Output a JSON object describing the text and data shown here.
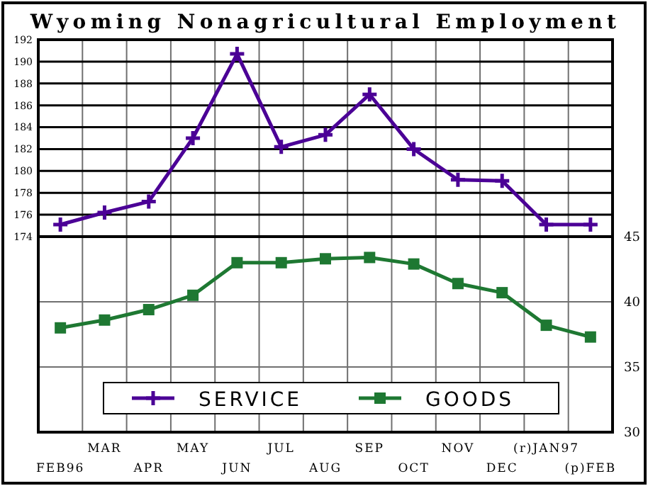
{
  "chart_data": [
    {
      "type": "line",
      "title": "Wyoming Nonagricultural Employment",
      "categories": [
        null,
        null,
        null,
        null,
        null,
        null,
        null,
        null,
        null,
        null,
        null,
        null,
        null
      ],
      "series": [
        {
          "name": "SERVICE",
          "color": "#4b0096",
          "marker": "cross",
          "values": [
            175.1,
            176.2,
            177.2,
            183,
            190.7,
            182.2,
            183.3,
            187,
            182,
            179.2,
            179.1,
            175.1,
            175.1
          ]
        }
      ],
      "ylim": [
        174,
        192
      ],
      "yticks": [
        174,
        176,
        178,
        180,
        182,
        184,
        186,
        188,
        190,
        192
      ],
      "grid": true,
      "tick_labels": "y",
      "legend": "bottom"
    },
    {
      "type": "line",
      "categories": [
        "FEB96",
        "MAR",
        "APR",
        "MAY",
        "JUN",
        "JUL",
        "AUG",
        "SEP",
        "OCT",
        "NOV",
        "DEC",
        "(r)JAN97",
        "(p)FEB"
      ],
      "series": [
        {
          "name": "GOODS",
          "color": "#1e7832",
          "marker": "square",
          "axis": "y2",
          "values": [
            38.0,
            38.6,
            39.4,
            40.5,
            43.0,
            43.0,
            43.3,
            43.4,
            42.9,
            41.4,
            40.7,
            38.2,
            37.3
          ]
        }
      ],
      "y2lim": [
        30,
        45
      ],
      "y2ticks": [
        30,
        35,
        40,
        45
      ],
      "grid": true,
      "legend": "bottom"
    }
  ]
}
